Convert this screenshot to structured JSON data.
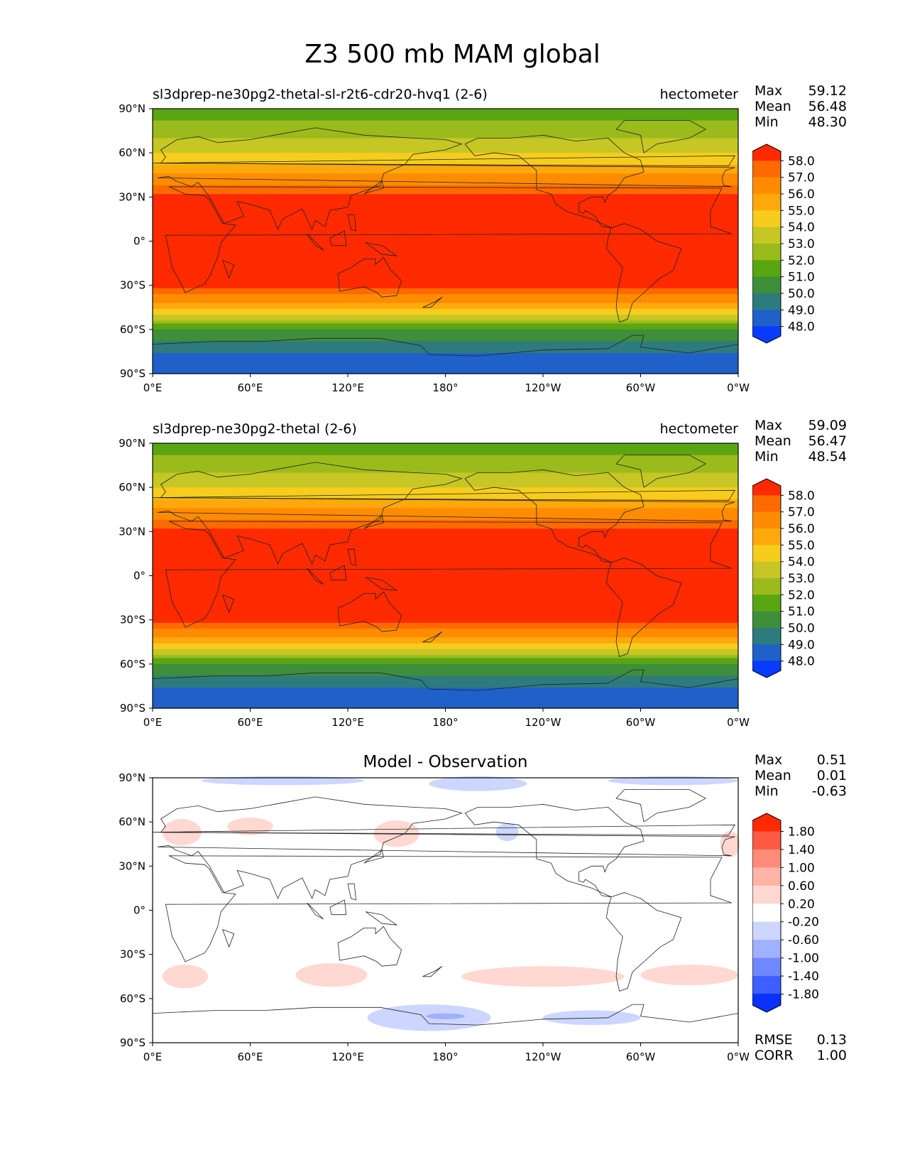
{
  "title": "Z3 500 mb MAM global",
  "x_ticks": [
    "0°E",
    "60°E",
    "120°E",
    "180°",
    "120°W",
    "60°W",
    "0°W"
  ],
  "y_ticks": [
    "90°N",
    "60°N",
    "30°N",
    "0°",
    "30°S",
    "60°S",
    "90°S"
  ],
  "panels": [
    {
      "title_left": "sl3dprep-ne30pg2-thetal-sl-r2t6-cdr20-hvq1 (2-6)",
      "title_right": "hectometer",
      "stats": [
        {
          "label": "Max",
          "value": "59.12"
        },
        {
          "label": "Mean",
          "value": "56.48"
        },
        {
          "label": "Min",
          "value": "48.30"
        }
      ]
    },
    {
      "title_left": "sl3dprep-ne30pg2-thetal (2-6)",
      "title_right": "hectometer",
      "stats": [
        {
          "label": "Max",
          "value": "59.09"
        },
        {
          "label": "Mean",
          "value": "56.47"
        },
        {
          "label": "Min",
          "value": "48.54"
        }
      ]
    },
    {
      "title_center": "Model - Observation",
      "stats": [
        {
          "label": "Max",
          "value": "0.51"
        },
        {
          "label": "Mean",
          "value": "0.01"
        },
        {
          "label": "Min",
          "value": "-0.63"
        }
      ],
      "bottom_stats": [
        {
          "label": "RMSE",
          "value": "0.13"
        },
        {
          "label": "CORR",
          "value": "1.00"
        }
      ]
    }
  ],
  "colorbar_field": {
    "labels": [
      "58.0",
      "57.0",
      "56.0",
      "55.0",
      "54.0",
      "53.0",
      "52.0",
      "51.0",
      "50.0",
      "49.0",
      "48.0"
    ],
    "colors": [
      "#ff2a00",
      "#ff6a00",
      "#ff8c00",
      "#fda90c",
      "#f6cd1c",
      "#c6c625",
      "#9abb1b",
      "#5aa512",
      "#3e8e3a",
      "#2e7b7e",
      "#1f61c8",
      "#0a3cff"
    ]
  },
  "colorbar_diff": {
    "labels": [
      "1.80",
      "1.40",
      "1.00",
      "0.60",
      "0.20",
      "-0.20",
      "-0.60",
      "-1.00",
      "-1.40",
      "-1.80"
    ],
    "colors": [
      "#ff2a00",
      "#ff5a45",
      "#ff8b78",
      "#ffb4a8",
      "#ffd8d2",
      "#ffffff",
      "#cdd6ff",
      "#9fb1ff",
      "#6f87ff",
      "#3e5eff",
      "#0a32ff"
    ]
  },
  "chart_data": [
    {
      "type": "heatmap",
      "title": "sl3dprep-ne30pg2-thetal-sl-r2t6-cdr20-hvq1 (2-6)",
      "units": "hectometer",
      "x": [
        "0°E",
        "60°E",
        "120°E",
        "180°",
        "120°W",
        "60°W",
        "0°W"
      ],
      "y": [
        "90°N",
        "60°N",
        "30°N",
        "0°",
        "30°S",
        "60°S",
        "90°S"
      ],
      "lat_band_values": {
        "lat": [
          90,
          75,
          60,
          45,
          30,
          0,
          -30,
          -45,
          -60,
          -75,
          -90
        ],
        "value": [
          51.5,
          52.5,
          54.0,
          56.0,
          58.2,
          58.8,
          58.2,
          55.5,
          51.0,
          49.0,
          48.5
        ]
      },
      "levels": [
        48,
        49,
        50,
        51,
        52,
        53,
        54,
        55,
        56,
        57,
        58
      ],
      "max": 59.12,
      "mean": 56.48,
      "min": 48.3
    },
    {
      "type": "heatmap",
      "title": "sl3dprep-ne30pg2-thetal (2-6)",
      "units": "hectometer",
      "x": [
        "0°E",
        "60°E",
        "120°E",
        "180°",
        "120°W",
        "60°W",
        "0°W"
      ],
      "y": [
        "90°N",
        "60°N",
        "30°N",
        "0°",
        "30°S",
        "60°S",
        "90°S"
      ],
      "lat_band_values": {
        "lat": [
          90,
          75,
          60,
          45,
          30,
          0,
          -30,
          -45,
          -60,
          -75,
          -90
        ],
        "value": [
          51.5,
          52.5,
          54.0,
          56.0,
          58.2,
          58.8,
          58.2,
          55.5,
          51.0,
          49.0,
          48.5
        ]
      },
      "levels": [
        48,
        49,
        50,
        51,
        52,
        53,
        54,
        55,
        56,
        57,
        58
      ],
      "max": 59.09,
      "mean": 56.47,
      "min": 48.54
    },
    {
      "type": "heatmap",
      "title": "Model - Observation",
      "x": [
        "0°E",
        "60°E",
        "120°E",
        "180°",
        "120°W",
        "60°W",
        "0°W"
      ],
      "y": [
        "90°N",
        "60°N",
        "30°N",
        "0°",
        "30°S",
        "60°S",
        "90°S"
      ],
      "levels": [
        -1.8,
        -1.4,
        -1.0,
        -0.6,
        -0.2,
        0.2,
        0.6,
        1.0,
        1.4,
        1.8
      ],
      "max": 0.51,
      "mean": 0.01,
      "min": -0.63,
      "rmse": 0.13,
      "corr": 1.0
    }
  ]
}
